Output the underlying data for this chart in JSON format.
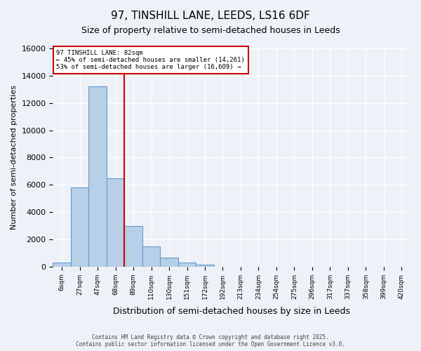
{
  "title": "97, TINSHILL LANE, LEEDS, LS16 6DF",
  "subtitle": "Size of property relative to semi-detached houses in Leeds",
  "xlabel": "Distribution of semi-detached houses by size in Leeds",
  "ylabel": "Number of semi-detached properties",
  "annotation_line1": "97 TINSHILL LANE: 82sqm",
  "annotation_line2": "← 45% of semi-detached houses are smaller (14,261)",
  "annotation_line3": "53% of semi-detached houses are larger (16,609) →",
  "bin_labels": [
    "6sqm",
    "27sqm",
    "47sqm",
    "68sqm",
    "89sqm",
    "110sqm",
    "130sqm",
    "151sqm",
    "172sqm",
    "192sqm",
    "213sqm",
    "234sqm",
    "254sqm",
    "275sqm",
    "296sqm",
    "317sqm",
    "337sqm",
    "358sqm",
    "399sqm",
    "420sqm"
  ],
  "bar_values": [
    300,
    5800,
    13200,
    6500,
    3000,
    1500,
    650,
    300,
    150,
    0,
    0,
    0,
    0,
    0,
    0,
    0,
    0,
    0,
    0,
    0
  ],
  "bar_color": "#b8cfe8",
  "bar_edge_color": "#6699cc",
  "red_line_x": 3.5,
  "red_line_color": "#cc0000",
  "annotation_box_color": "#cc0000",
  "background_color": "#eef2f8",
  "grid_color": "#ffffff",
  "ylim": [
    0,
    16000
  ],
  "yticks": [
    0,
    2000,
    4000,
    6000,
    8000,
    10000,
    12000,
    14000,
    16000
  ],
  "footer_line1": "Contains HM Land Registry data © Crown copyright and database right 2025.",
  "footer_line2": "Contains public sector information licensed under the Open Government Licence v3.0."
}
